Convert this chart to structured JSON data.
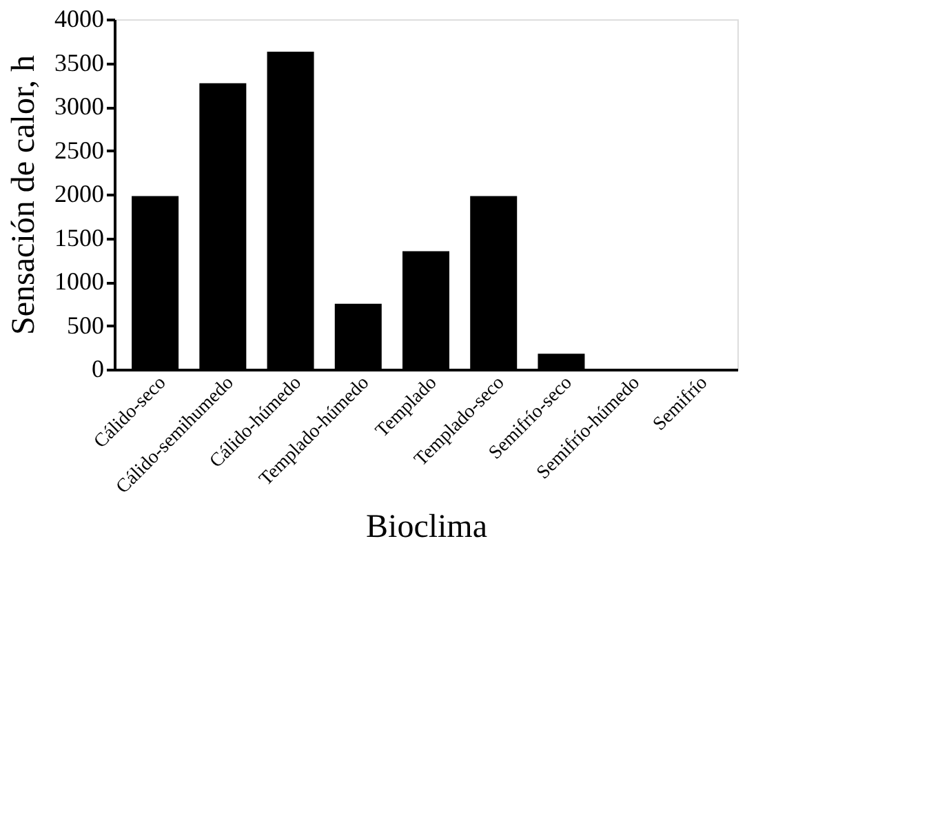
{
  "chart_data": {
    "type": "bar",
    "xlabel": "Bioclima",
    "ylabel": "Sensación de calor, h",
    "categories": [
      "Cálido-seco",
      "Cálido-semihumedo",
      "Cálido-húmedo",
      "Templado-húmedo",
      "Templado",
      "Templado-seco",
      "Semifrío-seco",
      "Semifrío-húmedo",
      "Semifrío"
    ],
    "values": [
      1980,
      3270,
      3630,
      750,
      1350,
      1980,
      180,
      0,
      0
    ],
    "color": "#000000",
    "ylim": [
      0,
      4000
    ],
    "yticks": [
      0,
      500,
      1000,
      1500,
      2000,
      2500,
      3000,
      3500,
      4000
    ],
    "grid": false
  }
}
